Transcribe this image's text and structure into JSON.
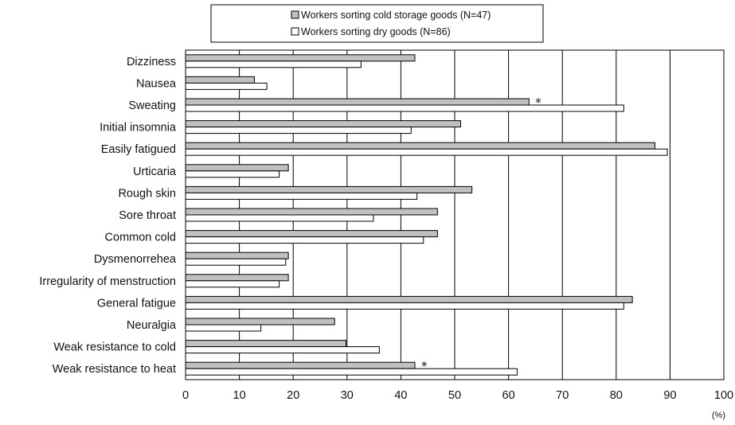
{
  "chart_data": {
    "type": "bar",
    "orientation": "horizontal",
    "categories": [
      "Dizziness",
      "Nausea",
      "Sweating",
      "Initial insomnia",
      "Easily fatigued",
      "Urticaria",
      "Rough skin",
      "Sore throat",
      "Common cold",
      "Dysmenorrehea",
      "Irregularity of menstruction",
      "General fatigue",
      "Neuralgia",
      "Weak resistance to cold",
      "Weak resistance to heat"
    ],
    "series": [
      {
        "name": "Workers sorting cold storage goods (N=47)",
        "color": "#c0c0c0",
        "values": [
          42.6,
          12.8,
          63.8,
          51.1,
          87.2,
          19.1,
          53.2,
          46.8,
          46.8,
          19.1,
          19.1,
          83.0,
          27.7,
          29.8,
          42.6
        ]
      },
      {
        "name": "Workers sorting dry goods (N=86)",
        "color": "#ffffff",
        "values": [
          32.6,
          15.1,
          81.4,
          41.9,
          89.5,
          17.4,
          43.0,
          34.9,
          44.2,
          18.6,
          17.4,
          81.4,
          14.0,
          36.0,
          61.6
        ]
      }
    ],
    "significance": [
      {
        "category": "Sweating",
        "mark": "*"
      },
      {
        "category": "Weak resistance to heat",
        "mark": "*"
      }
    ],
    "xlim": [
      0,
      100
    ],
    "xticks": [
      0,
      10,
      20,
      30,
      40,
      50,
      60,
      70,
      80,
      90,
      100
    ],
    "x_unit": "(%)",
    "grid": "vertical",
    "legend_position": "top-center",
    "title": "",
    "xlabel": "",
    "ylabel": ""
  }
}
